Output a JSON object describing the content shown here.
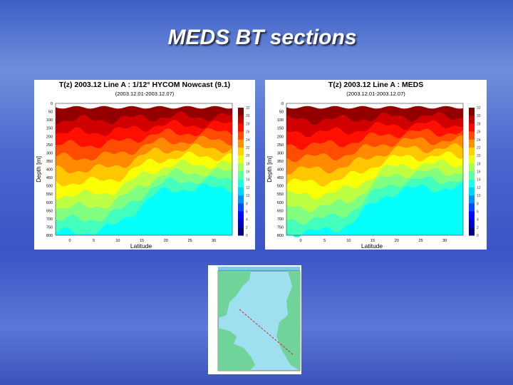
{
  "title": "MEDS BT sections",
  "panels": [
    {
      "title": "T(z) 2003.12 Line A : 1/12° HYCOM Nowcast (9.1)",
      "subtitle": "(2003.12.01-2003.12.07)",
      "y_label": "Depth [m]",
      "x_label": "Latitude",
      "y_ticks": [
        "0",
        "50",
        "100",
        "150",
        "200",
        "250",
        "300",
        "350",
        "400",
        "450",
        "500",
        "550",
        "600",
        "650",
        "700",
        "750",
        "800"
      ],
      "x_ticks": [
        "0",
        "5",
        "10",
        "15",
        "20",
        "25",
        "30"
      ],
      "colorbar_ticks": [
        "32",
        "30",
        "28",
        "26",
        "24",
        "22",
        "20",
        "18",
        "16",
        "14",
        "12",
        "10",
        "8",
        "6",
        "4",
        "2",
        "0"
      ]
    },
    {
      "title": "T(z) 2003.12 Line A : MEDS",
      "subtitle": "(2003.12.01-2003.12.07)",
      "y_label": "Depth [m]",
      "x_label": "Latitude",
      "y_ticks": [
        "0",
        "50",
        "100",
        "150",
        "200",
        "250",
        "300",
        "350",
        "400",
        "450",
        "500",
        "550",
        "600",
        "650",
        "700",
        "750",
        "800"
      ],
      "x_ticks": [
        "0",
        "5",
        "10",
        "15",
        "20",
        "25",
        "30"
      ],
      "colorbar_ticks": [
        "32",
        "30",
        "28",
        "26",
        "24",
        "22",
        "20",
        "18",
        "16",
        "14",
        "12",
        "10",
        "8",
        "6",
        "4",
        "2",
        "0"
      ]
    }
  ]
}
